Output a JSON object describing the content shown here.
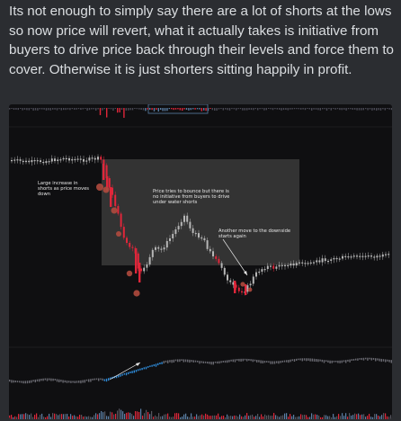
{
  "message": {
    "text": "Its not enough to simply say there are a lot of shorts at the lows so now price will revert, what it actually takes is initiative from buyers to drive price back through their levels and force them to cover. Otherwise it is just shorters sitting happily in profit."
  },
  "attachment": {
    "annotations": [
      {
        "id": "large-increase",
        "lines": [
          "Large increase in",
          "shorts as price moves",
          "down"
        ]
      },
      {
        "id": "bounce",
        "lines": [
          "Price tries to bounce but there is",
          "no initiative from buyers to drive",
          "under water shorts"
        ]
      },
      {
        "id": "another-move",
        "lines": [
          "Another move to the downside",
          "starts again"
        ]
      }
    ],
    "colors": {
      "up_candle": "#b7b7b7",
      "down_candle": "#e0263a",
      "marker": "#b04a3e",
      "open_interest": "#2e8ad8",
      "highlight_box": "#3a3a3a"
    }
  }
}
